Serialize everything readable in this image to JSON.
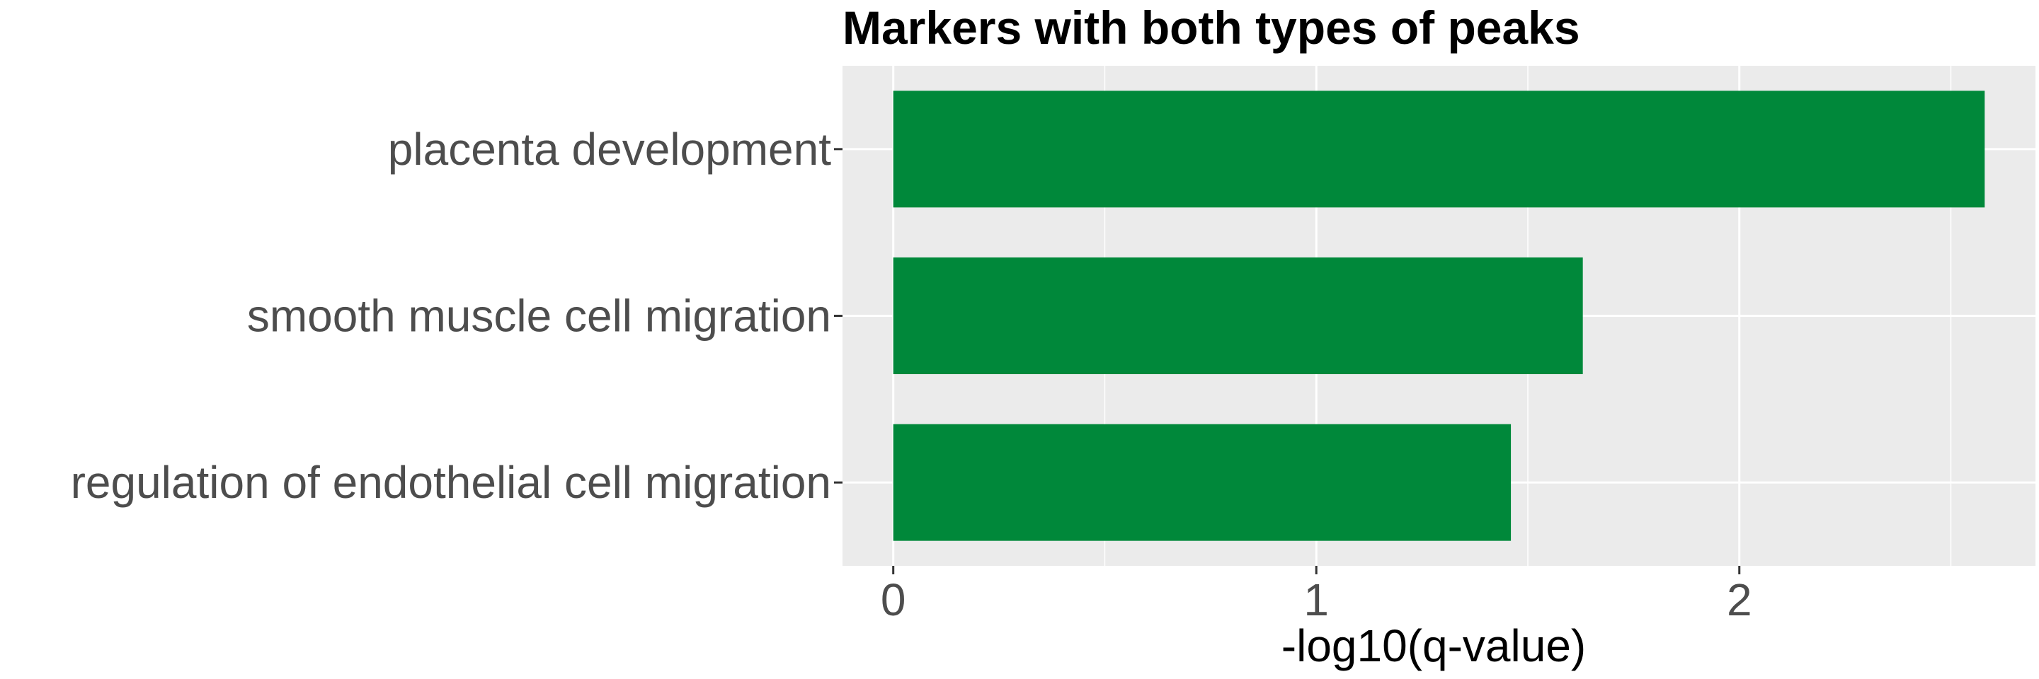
{
  "chart_data": {
    "type": "bar",
    "orientation": "horizontal",
    "title": "Markers with both types of peaks",
    "xlabel": "-log10(q-value)",
    "ylabel": "",
    "categories": [
      "placenta development",
      "smooth muscle cell migration",
      "regulation of endothelial cell migration"
    ],
    "values": [
      2.58,
      1.63,
      1.46
    ],
    "xlim": [
      -0.12,
      2.7
    ],
    "x_ticks": [
      0,
      1,
      2
    ],
    "x_tick_labels": [
      "0",
      "1",
      "2"
    ],
    "bar_color": "#00883a",
    "panel_background": "#ebebeb",
    "grid": true,
    "legend": "none"
  }
}
